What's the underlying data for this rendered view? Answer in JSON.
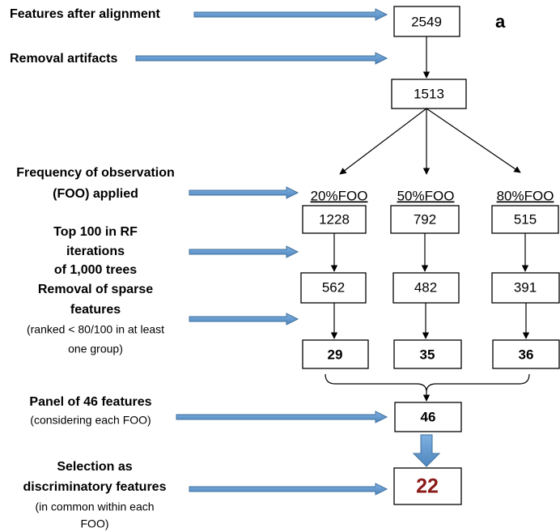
{
  "panel_label": "a",
  "steps": [
    {
      "lines": [
        "Features after alignment"
      ]
    },
    {
      "lines": [
        "Removal artifacts"
      ]
    },
    {
      "lines": [
        "Frequency of observation",
        "(FOO) applied"
      ]
    },
    {
      "lines": [
        "Top 100 in RF",
        "iterations",
        "of 1,000 trees"
      ]
    },
    {
      "lines": [
        "Removal of sparse",
        "features"
      ],
      "note": [
        "(ranked < 80/100 in at least",
        "one group)"
      ]
    },
    {
      "lines": [
        "Panel of 46 features"
      ],
      "note": [
        "(considering each FOO)"
      ]
    },
    {
      "lines": [
        "Selection as",
        "discriminatory features"
      ],
      "note": [
        "(in common within each",
        "FOO)"
      ]
    }
  ],
  "boxes": {
    "aligned": "2549",
    "cleaned": "1513",
    "groups": [
      {
        "header": "20%FOO",
        "foo": "1228",
        "top100": "562",
        "nonsparse": "29"
      },
      {
        "header": "50%FOO",
        "foo": "792",
        "top100": "482",
        "nonsparse": "35"
      },
      {
        "header": "80%FOO",
        "foo": "515",
        "top100": "391",
        "nonsparse": "36"
      }
    ],
    "panel": "46",
    "selected": "22"
  }
}
